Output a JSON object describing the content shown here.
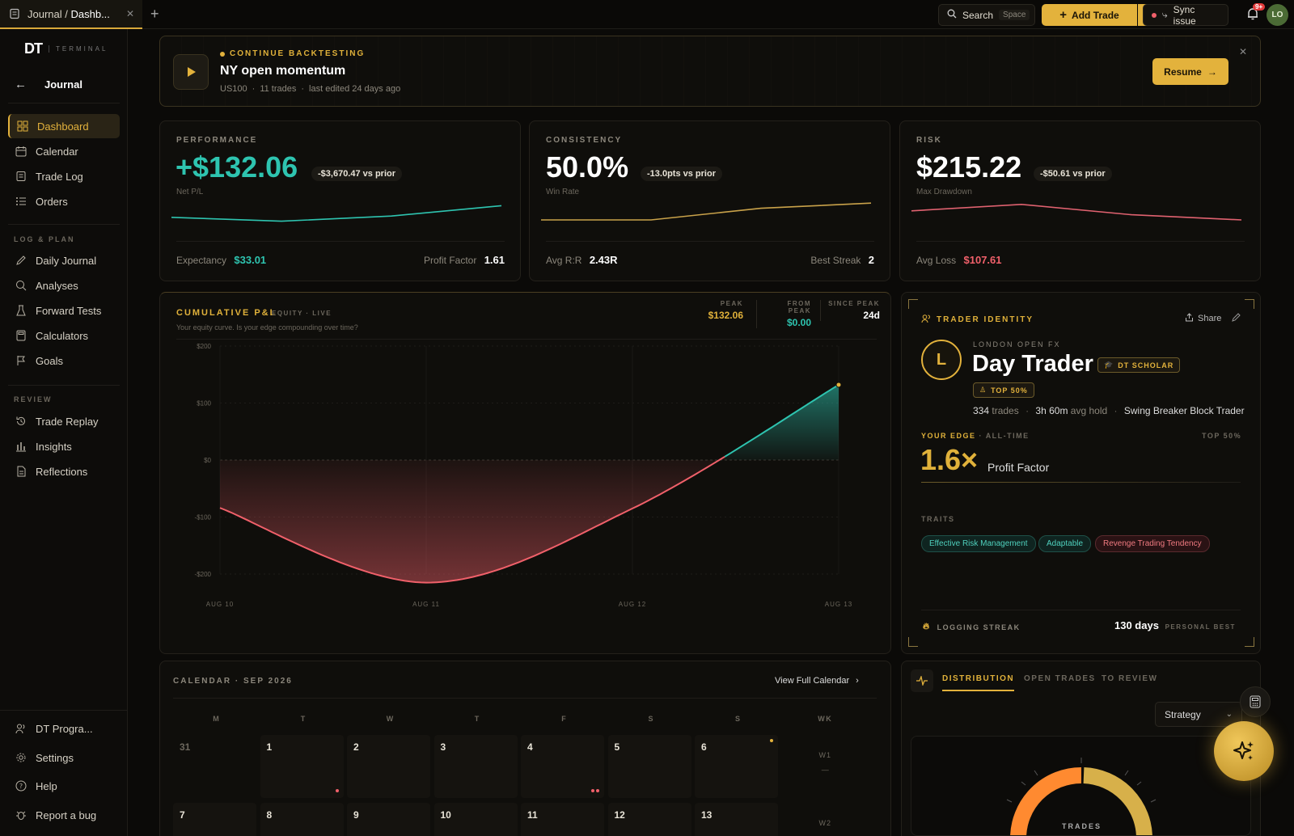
{
  "tab": {
    "title_prefix": "Journal / ",
    "title_main": "Dashb..."
  },
  "topbar": {
    "search_label": "Search",
    "search_kbd": "Space",
    "add_trade": "Add Trade",
    "sync": "Sync issue",
    "notif_badge": "9+",
    "avatar": "LO"
  },
  "sidebar": {
    "logo": "DT",
    "logo_sub": "TERMINAL",
    "back_label": "Journal",
    "main_items": [
      "Dashboard",
      "Calendar",
      "Trade Log",
      "Orders"
    ],
    "section_log": "LOG & PLAN",
    "log_items": [
      "Daily Journal",
      "Analyses",
      "Forward Tests",
      "Calculators",
      "Goals"
    ],
    "section_review": "REVIEW",
    "review_items": [
      "Trade Replay",
      "Insights",
      "Reflections"
    ],
    "bottom_items": [
      "DT Progra...",
      "Settings",
      "Help",
      "Report a bug"
    ]
  },
  "banner": {
    "kicker": "CONTINUE BACKTESTING",
    "title": "NY open momentum",
    "symbol": "US100",
    "trades": "11 trades",
    "edited": "last edited 24 days ago",
    "resume": "Resume"
  },
  "perf": {
    "label": "PERFORMANCE",
    "value": "+$132.06",
    "delta": "-$3,670.47 vs prior",
    "sub": "Net P/L",
    "left_label": "Expectancy",
    "left_value": "$33.01",
    "right_label": "Profit Factor",
    "right_value": "1.61",
    "spark": [
      0.35,
      0.2,
      0.4,
      0.8
    ]
  },
  "cons": {
    "label": "CONSISTENCY",
    "value": "50.0%",
    "delta": "-13.0pts vs prior",
    "sub": "Win Rate",
    "left_label": "Avg R:R",
    "left_value": "2.43R",
    "right_label": "Best Streak",
    "right_value": "2",
    "spark": [
      0.25,
      0.25,
      0.7,
      0.9
    ]
  },
  "risk": {
    "label": "RISK",
    "value": "$215.22",
    "delta": "-$50.61 vs prior",
    "sub": "Max Drawdown",
    "left_label": "Avg Loss",
    "left_value": "$107.61",
    "spark": [
      0.6,
      0.85,
      0.45,
      0.25
    ]
  },
  "equity": {
    "title": "CUMULATIVE P&L",
    "tag": "EQUITY · LIVE",
    "subtitle": "Your equity curve. Is your edge compounding over time?",
    "stats": [
      {
        "label": "PEAK",
        "value": "$132.06"
      },
      {
        "label": "FROM PEAK",
        "value": "$0.00"
      },
      {
        "label": "SINCE PEAK",
        "value": "24d"
      }
    ]
  },
  "chart_data": {
    "type": "area",
    "x": [
      "AUG 10",
      "AUG 11",
      "AUG 12",
      "AUG 13"
    ],
    "values": [
      -84,
      -215,
      -85,
      132
    ],
    "yticks": [
      "$200",
      "$100",
      "$0",
      "-$100",
      "-$200"
    ],
    "ylim": [
      -200,
      200
    ],
    "title": "CUMULATIVE P&L",
    "colors": {
      "positive": "#2ec4b0",
      "negative": "#f0606a"
    }
  },
  "identity": {
    "kicker": "TRADER IDENTITY",
    "share": "Share",
    "initial": "L",
    "group": "LONDON OPEN FX",
    "title": "Day Trader",
    "badge": "DT SCHOLAR",
    "rank": "TOP 50%",
    "trades_value": "334",
    "trades_label": "trades",
    "hold_value": "3h 60m",
    "hold_label": "avg hold",
    "style": "Swing Breaker Block Trader",
    "edge_label": "YOUR EDGE",
    "edge_scope": "ALL-TIME",
    "edge_rank": "TOP 50%",
    "edge_value": "1.6×",
    "edge_metric": "Profit Factor",
    "traits_label": "TRAITS",
    "traits": [
      "Effective Risk Management",
      "Adaptable",
      "Revenge Trading Tendency"
    ],
    "streak_label": "LOGGING STREAK",
    "streak_value": "130 days",
    "streak_best": "PERSONAL BEST"
  },
  "calendar": {
    "title": "CALENDAR · SEP 2026",
    "view_all": "View Full Calendar",
    "days": [
      "M",
      "T",
      "W",
      "T",
      "F",
      "S",
      "S",
      "WK"
    ],
    "week1": [
      "31",
      "1",
      "2",
      "3",
      "4",
      "5",
      "6"
    ],
    "wk1": "W1",
    "wk1_val": "—",
    "week2": [
      "7",
      "8",
      "9",
      "10",
      "11",
      "12",
      "13"
    ],
    "wk2": "W2"
  },
  "dist": {
    "tabs": [
      "DISTRIBUTION",
      "OPEN TRADES",
      "TO REVIEW"
    ],
    "select": "Strategy",
    "donut_label": "TRADES"
  }
}
